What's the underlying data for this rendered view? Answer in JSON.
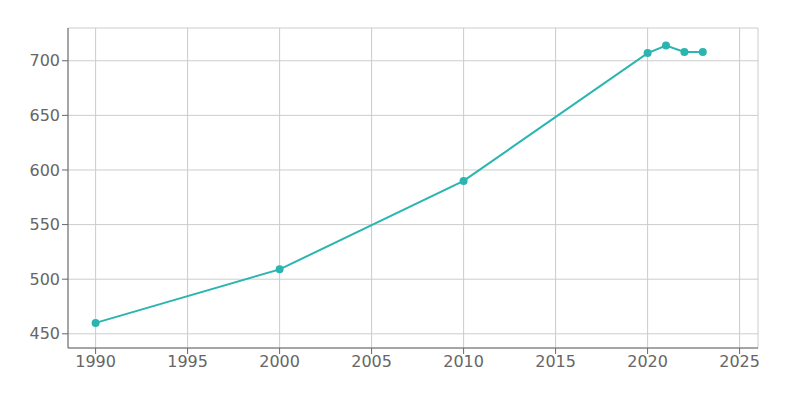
{
  "chart_data": {
    "type": "line",
    "x": [
      1990,
      2000,
      2010,
      2020,
      2021,
      2022,
      2023
    ],
    "values": [
      460,
      509,
      590,
      707,
      714,
      708,
      708
    ],
    "color": "#2ab5b0",
    "marker": "circle",
    "xlim": [
      1988.5,
      2026
    ],
    "ylim": [
      437,
      730
    ],
    "xticks": [
      1990,
      1995,
      2000,
      2005,
      2010,
      2015,
      2020,
      2025
    ],
    "yticks": [
      450,
      500,
      550,
      600,
      650,
      700
    ],
    "grid": true
  }
}
